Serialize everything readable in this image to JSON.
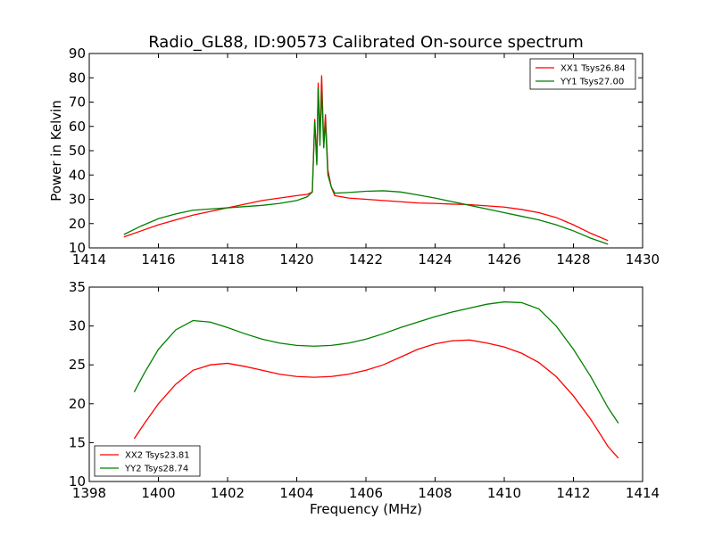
{
  "figure": {
    "title": "Radio_GL88, ID:90573 Calibrated On-source spectrum",
    "xlabel": "Frequency (MHz)"
  },
  "chart_data": [
    {
      "type": "line",
      "ylabel": "Power in Kelvin",
      "xlabel": "",
      "xlim": [
        1414,
        1430
      ],
      "ylim": [
        10,
        90
      ],
      "xticks": [
        1414,
        1416,
        1418,
        1420,
        1422,
        1424,
        1426,
        1428,
        1430
      ],
      "yticks": [
        10,
        20,
        30,
        40,
        50,
        60,
        70,
        80,
        90
      ],
      "grid": false,
      "legend_position": "top-right",
      "series": [
        {
          "name": "XX1 Tsys26.84",
          "color": "#ff0000",
          "points": [
            [
              1415.0,
              14.5
            ],
            [
              1415.5,
              17.0
            ],
            [
              1416.0,
              19.5
            ],
            [
              1416.5,
              21.5
            ],
            [
              1417.0,
              23.5
            ],
            [
              1417.5,
              25.0
            ],
            [
              1418.0,
              26.5
            ],
            [
              1418.5,
              28.0
            ],
            [
              1419.0,
              29.5
            ],
            [
              1419.5,
              30.5
            ],
            [
              1420.0,
              31.5
            ],
            [
              1420.3,
              32.0
            ],
            [
              1420.45,
              33.0
            ],
            [
              1420.52,
              63.0
            ],
            [
              1420.58,
              45.0
            ],
            [
              1420.62,
              78.0
            ],
            [
              1420.67,
              55.0
            ],
            [
              1420.72,
              81.0
            ],
            [
              1420.78,
              53.0
            ],
            [
              1420.83,
              65.0
            ],
            [
              1420.9,
              42.0
            ],
            [
              1421.0,
              35.0
            ],
            [
              1421.1,
              31.5
            ],
            [
              1421.5,
              30.5
            ],
            [
              1422.0,
              30.0
            ],
            [
              1422.5,
              29.5
            ],
            [
              1423.0,
              29.0
            ],
            [
              1423.5,
              28.5
            ],
            [
              1424.0,
              28.3
            ],
            [
              1424.5,
              28.0
            ],
            [
              1425.0,
              27.8
            ],
            [
              1425.5,
              27.3
            ],
            [
              1426.0,
              26.8
            ],
            [
              1426.5,
              25.8
            ],
            [
              1427.0,
              24.5
            ],
            [
              1427.5,
              22.5
            ],
            [
              1428.0,
              19.5
            ],
            [
              1428.5,
              16.0
            ],
            [
              1429.0,
              13.0
            ]
          ]
        },
        {
          "name": "YY1 Tsys27.00",
          "color": "#008000",
          "points": [
            [
              1415.0,
              15.5
            ],
            [
              1415.5,
              19.0
            ],
            [
              1416.0,
              22.0
            ],
            [
              1416.5,
              24.0
            ],
            [
              1417.0,
              25.5
            ],
            [
              1417.5,
              26.0
            ],
            [
              1418.0,
              26.5
            ],
            [
              1418.5,
              27.0
            ],
            [
              1419.0,
              27.5
            ],
            [
              1419.5,
              28.3
            ],
            [
              1420.0,
              29.5
            ],
            [
              1420.3,
              31.0
            ],
            [
              1420.45,
              33.0
            ],
            [
              1420.52,
              62.0
            ],
            [
              1420.58,
              44.0
            ],
            [
              1420.62,
              76.0
            ],
            [
              1420.67,
              52.0
            ],
            [
              1420.72,
              75.0
            ],
            [
              1420.78,
              51.0
            ],
            [
              1420.83,
              62.0
            ],
            [
              1420.9,
              40.0
            ],
            [
              1421.0,
              35.0
            ],
            [
              1421.1,
              32.5
            ],
            [
              1421.5,
              32.8
            ],
            [
              1422.0,
              33.3
            ],
            [
              1422.5,
              33.5
            ],
            [
              1423.0,
              33.0
            ],
            [
              1423.5,
              31.8
            ],
            [
              1424.0,
              30.5
            ],
            [
              1424.5,
              29.0
            ],
            [
              1425.0,
              27.5
            ],
            [
              1425.5,
              26.0
            ],
            [
              1426.0,
              24.5
            ],
            [
              1426.5,
              23.0
            ],
            [
              1427.0,
              21.5
            ],
            [
              1427.5,
              19.5
            ],
            [
              1428.0,
              17.0
            ],
            [
              1428.5,
              14.0
            ],
            [
              1429.0,
              11.5
            ]
          ]
        }
      ]
    },
    {
      "type": "line",
      "ylabel": "",
      "xlabel": "Frequency (MHz)",
      "xlim": [
        1398,
        1414
      ],
      "ylim": [
        10,
        35
      ],
      "xticks": [
        1398,
        1400,
        1402,
        1404,
        1406,
        1408,
        1410,
        1412,
        1414
      ],
      "yticks": [
        10,
        15,
        20,
        25,
        30,
        35
      ],
      "grid": false,
      "legend_position": "bottom-left",
      "series": [
        {
          "name": "XX2 Tsys23.81",
          "color": "#ff0000",
          "points": [
            [
              1399.3,
              15.5
            ],
            [
              1399.6,
              17.5
            ],
            [
              1400.0,
              20.0
            ],
            [
              1400.5,
              22.5
            ],
            [
              1401.0,
              24.3
            ],
            [
              1401.5,
              25.0
            ],
            [
              1402.0,
              25.2
            ],
            [
              1402.5,
              24.8
            ],
            [
              1403.0,
              24.3
            ],
            [
              1403.5,
              23.8
            ],
            [
              1404.0,
              23.5
            ],
            [
              1404.5,
              23.4
            ],
            [
              1405.0,
              23.5
            ],
            [
              1405.5,
              23.8
            ],
            [
              1406.0,
              24.3
            ],
            [
              1406.5,
              25.0
            ],
            [
              1407.0,
              26.0
            ],
            [
              1407.5,
              27.0
            ],
            [
              1408.0,
              27.7
            ],
            [
              1408.5,
              28.1
            ],
            [
              1409.0,
              28.2
            ],
            [
              1409.5,
              27.8
            ],
            [
              1410.0,
              27.3
            ],
            [
              1410.5,
              26.5
            ],
            [
              1411.0,
              25.3
            ],
            [
              1411.5,
              23.5
            ],
            [
              1412.0,
              21.0
            ],
            [
              1412.5,
              18.0
            ],
            [
              1413.0,
              14.5
            ],
            [
              1413.3,
              13.0
            ]
          ]
        },
        {
          "name": "YY2 Tsys28.74",
          "color": "#008000",
          "points": [
            [
              1399.3,
              21.5
            ],
            [
              1399.6,
              24.0
            ],
            [
              1400.0,
              27.0
            ],
            [
              1400.5,
              29.5
            ],
            [
              1401.0,
              30.7
            ],
            [
              1401.5,
              30.5
            ],
            [
              1402.0,
              29.8
            ],
            [
              1402.5,
              29.0
            ],
            [
              1403.0,
              28.3
            ],
            [
              1403.5,
              27.8
            ],
            [
              1404.0,
              27.5
            ],
            [
              1404.5,
              27.4
            ],
            [
              1405.0,
              27.5
            ],
            [
              1405.5,
              27.8
            ],
            [
              1406.0,
              28.3
            ],
            [
              1406.5,
              29.0
            ],
            [
              1407.0,
              29.8
            ],
            [
              1407.5,
              30.5
            ],
            [
              1408.0,
              31.2
            ],
            [
              1408.5,
              31.8
            ],
            [
              1409.0,
              32.3
            ],
            [
              1409.5,
              32.8
            ],
            [
              1410.0,
              33.1
            ],
            [
              1410.5,
              33.0
            ],
            [
              1411.0,
              32.2
            ],
            [
              1411.5,
              30.0
            ],
            [
              1412.0,
              27.0
            ],
            [
              1412.5,
              23.5
            ],
            [
              1413.0,
              19.5
            ],
            [
              1413.3,
              17.5
            ]
          ]
        }
      ]
    }
  ]
}
